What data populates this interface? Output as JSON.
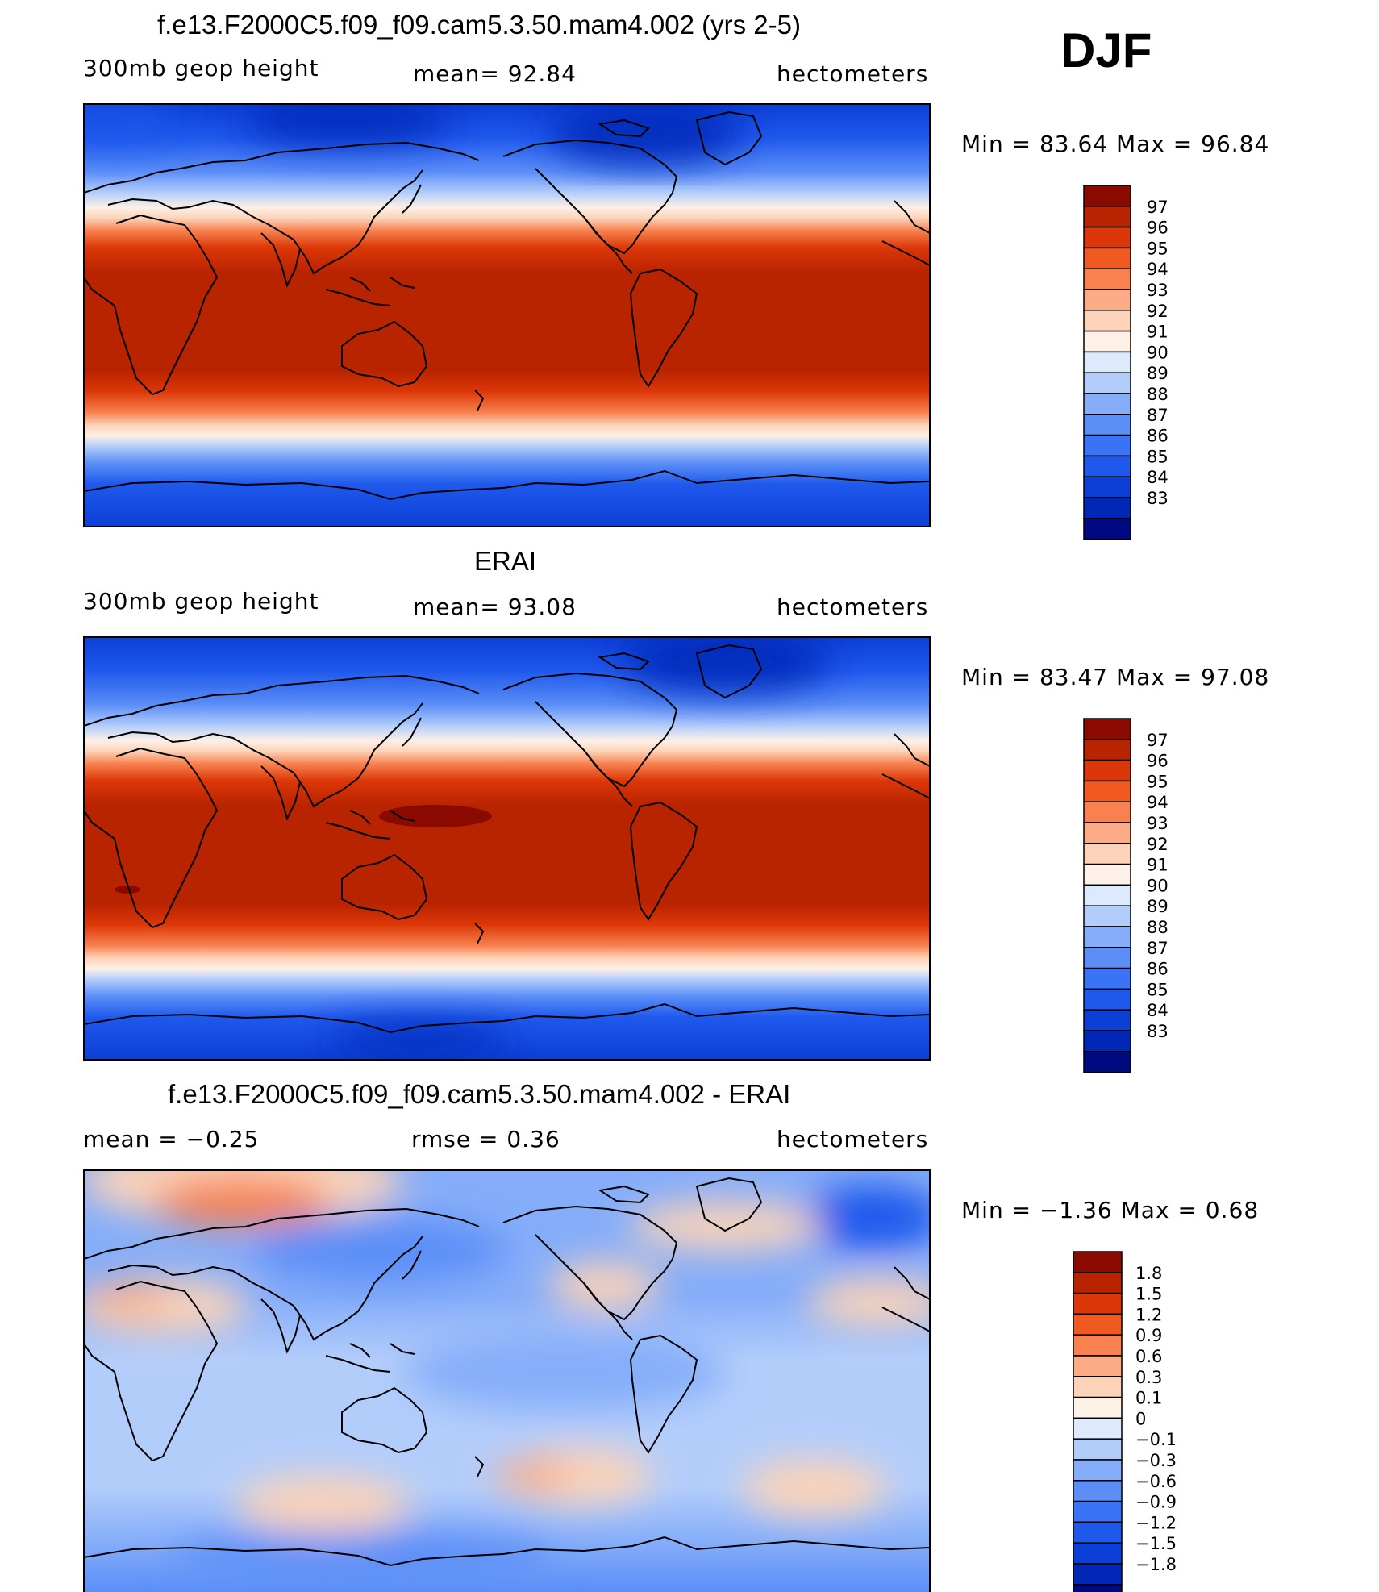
{
  "season": "DJF",
  "panels": [
    {
      "title": "f.e13.F2000C5.f09_f09.cam5.3.50.mam4.002 (yrs 2-5)",
      "left_label": "300mb  geop  height",
      "center_label": "mean=   92.84",
      "right_label": "hectometers",
      "minmax": "Min  =    83.64  Max  =    96.84",
      "colorbar": [
        "97",
        "96",
        "95",
        "94",
        "93",
        "92",
        "91",
        "90",
        "89",
        "88",
        "87",
        "86",
        "85",
        "84",
        "83"
      ]
    },
    {
      "title": "ERAI",
      "left_label": "300mb  geop  height",
      "center_label": "mean=   93.08",
      "right_label": "hectometers",
      "minmax": "Min  =    83.47  Max  =    97.08",
      "colorbar": [
        "97",
        "96",
        "95",
        "94",
        "93",
        "92",
        "91",
        "90",
        "89",
        "88",
        "87",
        "86",
        "85",
        "84",
        "83"
      ]
    },
    {
      "title": "f.e13.F2000C5.f09_f09.cam5.3.50.mam4.002 - ERAI",
      "left_label": "mean  =    −0.25",
      "center_label": "rmse  =     0.36",
      "right_label": "hectometers",
      "minmax": "Min  =    −1.36  Max  =      0.68",
      "colorbar": [
        "1.8",
        "1.5",
        "1.2",
        "0.9",
        "0.6",
        "0.3",
        "0.1",
        "0",
        "−0.1",
        "−0.3",
        "−0.6",
        "−0.9",
        "−1.2",
        "−1.5",
        "−1.8"
      ]
    }
  ],
  "colors": {
    "abs_scale": [
      "#000a80",
      "#0027b5",
      "#0b3fd6",
      "#1f59ec",
      "#3a73f5",
      "#5b8ef7",
      "#85adf9",
      "#b3cdfb",
      "#dde9fd",
      "#fdf0e6",
      "#fcd3b8",
      "#fbab85",
      "#f8814f",
      "#f05a20",
      "#dc3708",
      "#b82300",
      "#8b0a00"
    ],
    "diff_scale": [
      "#000a80",
      "#0027b5",
      "#0b3fd6",
      "#1f59ec",
      "#3a73f5",
      "#5b8ef7",
      "#85adf9",
      "#b3cdfb",
      "#dde9fd",
      "#fdf0e6",
      "#fcd3b8",
      "#fbab85",
      "#f8814f",
      "#f05a20",
      "#dc3708",
      "#b82300",
      "#8b0a00"
    ]
  }
}
